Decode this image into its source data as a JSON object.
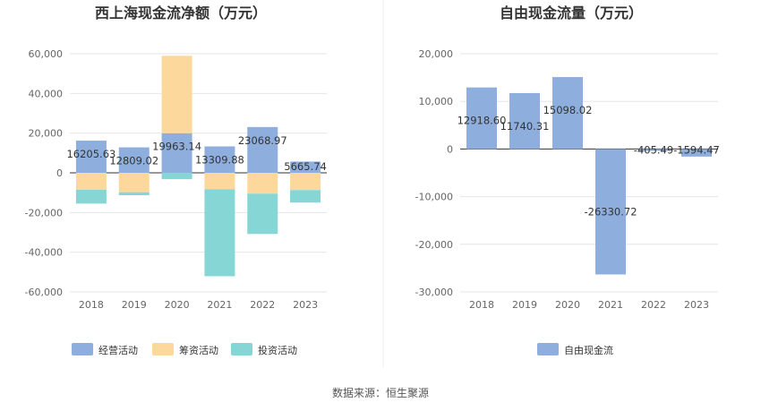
{
  "source_label": "数据来源：恒生聚源",
  "chart_data": [
    {
      "type": "bar",
      "stacked": true,
      "title": "西上海现金流净额（万元）",
      "categories": [
        "2018",
        "2019",
        "2020",
        "2021",
        "2022",
        "2023"
      ],
      "yticks": [
        "60,000",
        "40,000",
        "20,000",
        "0",
        "-20,000",
        "-40,000",
        "-60,000"
      ],
      "ylim": [
        -60000,
        60000
      ],
      "series": [
        {
          "name": "经营活动",
          "color": "#8eaede",
          "values": [
            16205.63,
            12809.02,
            19963.14,
            13309.88,
            23068.97,
            5665.74
          ]
        },
        {
          "name": "筹资活动",
          "color": "#fdd89d",
          "values": [
            -8500,
            -9800,
            39000,
            -8300,
            -10500,
            -8700
          ]
        },
        {
          "name": "投资活动",
          "color": "#86d6d6",
          "values": [
            -7000,
            -1500,
            -3200,
            -43800,
            -20300,
            -6300
          ]
        }
      ],
      "data_labels": [
        "16205.63",
        "12809.02",
        "19963.14",
        "13309.88",
        "23068.97",
        "5665.74"
      ]
    },
    {
      "type": "bar",
      "title": "自由现金流量（万元）",
      "categories": [
        "2018",
        "2019",
        "2020",
        "2021",
        "2022",
        "2023"
      ],
      "yticks": [
        "20,000",
        "10,000",
        "0",
        "-10,000",
        "-20,000",
        "-30,000"
      ],
      "ylim": [
        -30000,
        20000
      ],
      "series": [
        {
          "name": "自由现金流",
          "color": "#8eaede",
          "values": [
            12918.6,
            11740.31,
            15098.02,
            -26330.72,
            -405.49,
            -1594.47
          ]
        }
      ],
      "data_labels": [
        "12918.60",
        "11740.31",
        "15098.02",
        "-26330.72",
        "-405.49",
        "-1594.47"
      ]
    }
  ]
}
